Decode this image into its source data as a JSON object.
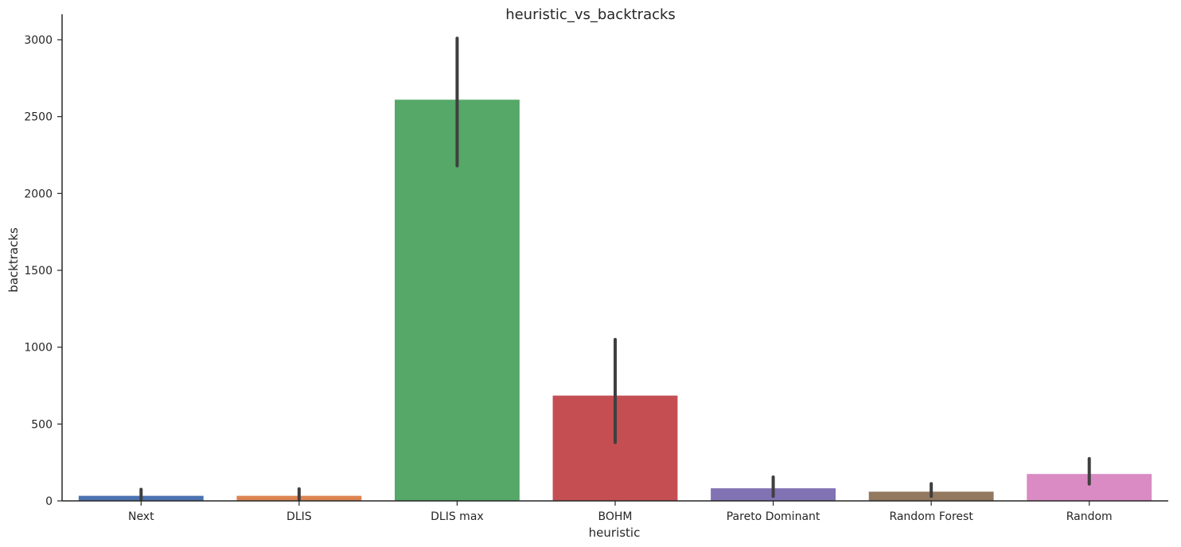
{
  "chart_data": {
    "type": "bar",
    "title": "heuristic_vs_backtracks",
    "xlabel": "heuristic",
    "ylabel": "backtracks",
    "categories": [
      "Next",
      "DLIS",
      "DLIS max",
      "BOHM",
      "Pareto Dominant",
      "Random Forest",
      "Random"
    ],
    "values": [
      33,
      33,
      2610,
      685,
      82,
      60,
      175
    ],
    "error_low": [
      8,
      8,
      2180,
      380,
      30,
      30,
      110
    ],
    "error_high": [
      75,
      78,
      3010,
      1050,
      155,
      112,
      275
    ],
    "colors": [
      "#4c72b0",
      "#dd8452",
      "#55a868",
      "#c44e52",
      "#8172b3",
      "#937860",
      "#da8bc3"
    ],
    "error_color": "#3f3f3f",
    "ylim": [
      0,
      3150
    ],
    "yticks": [
      0,
      500,
      1000,
      1500,
      2000,
      2500,
      3000
    ],
    "ytick_labels": [
      "0",
      "500",
      "1000",
      "1500",
      "2000",
      "2500",
      "3000"
    ],
    "grid": false
  }
}
